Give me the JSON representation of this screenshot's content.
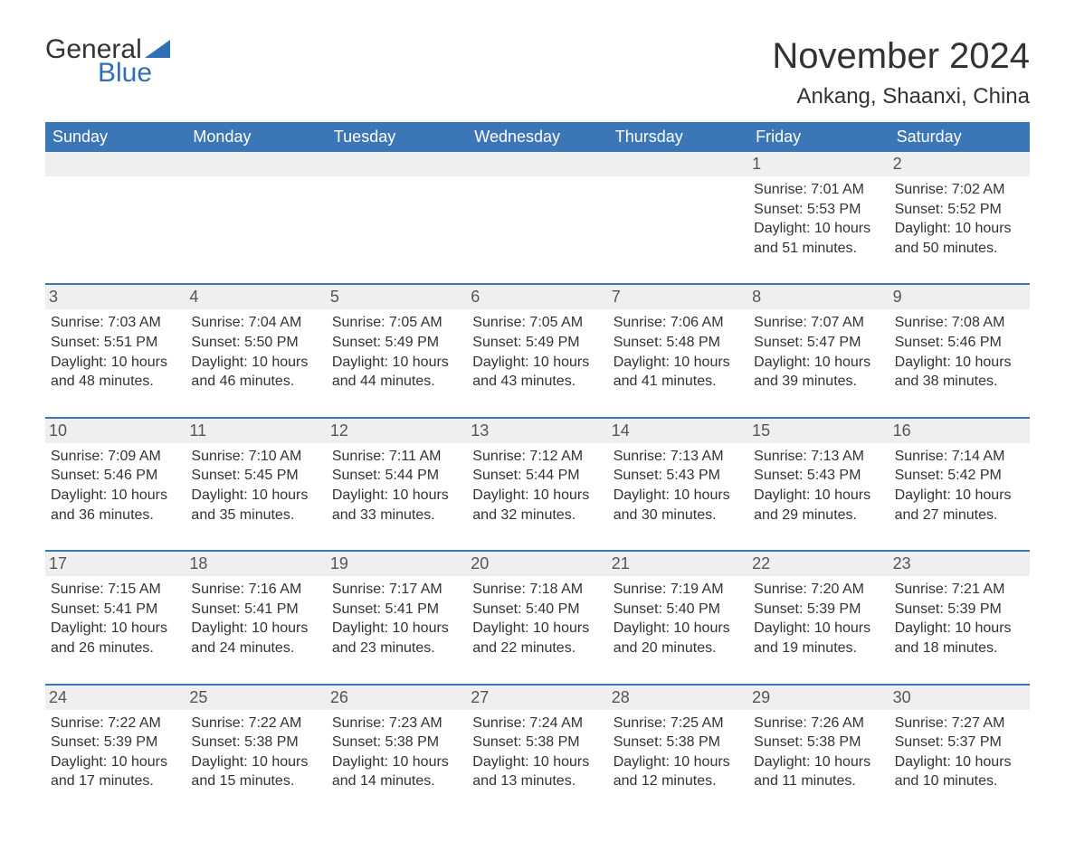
{
  "logo": {
    "general": "General",
    "blue": "Blue"
  },
  "header": {
    "month_title": "November 2024",
    "location": "Ankang, Shaanxi, China"
  },
  "style": {
    "header_bg": "#3b77b7",
    "header_text": "#ffffff",
    "divider_color": "#3b77b7",
    "daynum_bg": "#efefef",
    "body_text": "#333333",
    "logo_blue": "#2f6fb3",
    "title_fontsize": 40,
    "location_fontsize": 24,
    "weekday_fontsize": 18,
    "daynum_fontsize": 18,
    "body_fontsize": 16
  },
  "weekdays": [
    "Sunday",
    "Monday",
    "Tuesday",
    "Wednesday",
    "Thursday",
    "Friday",
    "Saturday"
  ],
  "labels": {
    "sunrise": "Sunrise:",
    "sunset": "Sunset:",
    "daylight": "Daylight:"
  },
  "weeks": [
    [
      null,
      null,
      null,
      null,
      null,
      {
        "n": "1",
        "sunrise": "7:01 AM",
        "sunset": "5:53 PM",
        "daylight": "10 hours and 51 minutes."
      },
      {
        "n": "2",
        "sunrise": "7:02 AM",
        "sunset": "5:52 PM",
        "daylight": "10 hours and 50 minutes."
      }
    ],
    [
      {
        "n": "3",
        "sunrise": "7:03 AM",
        "sunset": "5:51 PM",
        "daylight": "10 hours and 48 minutes."
      },
      {
        "n": "4",
        "sunrise": "7:04 AM",
        "sunset": "5:50 PM",
        "daylight": "10 hours and 46 minutes."
      },
      {
        "n": "5",
        "sunrise": "7:05 AM",
        "sunset": "5:49 PM",
        "daylight": "10 hours and 44 minutes."
      },
      {
        "n": "6",
        "sunrise": "7:05 AM",
        "sunset": "5:49 PM",
        "daylight": "10 hours and 43 minutes."
      },
      {
        "n": "7",
        "sunrise": "7:06 AM",
        "sunset": "5:48 PM",
        "daylight": "10 hours and 41 minutes."
      },
      {
        "n": "8",
        "sunrise": "7:07 AM",
        "sunset": "5:47 PM",
        "daylight": "10 hours and 39 minutes."
      },
      {
        "n": "9",
        "sunrise": "7:08 AM",
        "sunset": "5:46 PM",
        "daylight": "10 hours and 38 minutes."
      }
    ],
    [
      {
        "n": "10",
        "sunrise": "7:09 AM",
        "sunset": "5:46 PM",
        "daylight": "10 hours and 36 minutes."
      },
      {
        "n": "11",
        "sunrise": "7:10 AM",
        "sunset": "5:45 PM",
        "daylight": "10 hours and 35 minutes."
      },
      {
        "n": "12",
        "sunrise": "7:11 AM",
        "sunset": "5:44 PM",
        "daylight": "10 hours and 33 minutes."
      },
      {
        "n": "13",
        "sunrise": "7:12 AM",
        "sunset": "5:44 PM",
        "daylight": "10 hours and 32 minutes."
      },
      {
        "n": "14",
        "sunrise": "7:13 AM",
        "sunset": "5:43 PM",
        "daylight": "10 hours and 30 minutes."
      },
      {
        "n": "15",
        "sunrise": "7:13 AM",
        "sunset": "5:43 PM",
        "daylight": "10 hours and 29 minutes."
      },
      {
        "n": "16",
        "sunrise": "7:14 AM",
        "sunset": "5:42 PM",
        "daylight": "10 hours and 27 minutes."
      }
    ],
    [
      {
        "n": "17",
        "sunrise": "7:15 AM",
        "sunset": "5:41 PM",
        "daylight": "10 hours and 26 minutes."
      },
      {
        "n": "18",
        "sunrise": "7:16 AM",
        "sunset": "5:41 PM",
        "daylight": "10 hours and 24 minutes."
      },
      {
        "n": "19",
        "sunrise": "7:17 AM",
        "sunset": "5:41 PM",
        "daylight": "10 hours and 23 minutes."
      },
      {
        "n": "20",
        "sunrise": "7:18 AM",
        "sunset": "5:40 PM",
        "daylight": "10 hours and 22 minutes."
      },
      {
        "n": "21",
        "sunrise": "7:19 AM",
        "sunset": "5:40 PM",
        "daylight": "10 hours and 20 minutes."
      },
      {
        "n": "22",
        "sunrise": "7:20 AM",
        "sunset": "5:39 PM",
        "daylight": "10 hours and 19 minutes."
      },
      {
        "n": "23",
        "sunrise": "7:21 AM",
        "sunset": "5:39 PM",
        "daylight": "10 hours and 18 minutes."
      }
    ],
    [
      {
        "n": "24",
        "sunrise": "7:22 AM",
        "sunset": "5:39 PM",
        "daylight": "10 hours and 17 minutes."
      },
      {
        "n": "25",
        "sunrise": "7:22 AM",
        "sunset": "5:38 PM",
        "daylight": "10 hours and 15 minutes."
      },
      {
        "n": "26",
        "sunrise": "7:23 AM",
        "sunset": "5:38 PM",
        "daylight": "10 hours and 14 minutes."
      },
      {
        "n": "27",
        "sunrise": "7:24 AM",
        "sunset": "5:38 PM",
        "daylight": "10 hours and 13 minutes."
      },
      {
        "n": "28",
        "sunrise": "7:25 AM",
        "sunset": "5:38 PM",
        "daylight": "10 hours and 12 minutes."
      },
      {
        "n": "29",
        "sunrise": "7:26 AM",
        "sunset": "5:38 PM",
        "daylight": "10 hours and 11 minutes."
      },
      {
        "n": "30",
        "sunrise": "7:27 AM",
        "sunset": "5:37 PM",
        "daylight": "10 hours and 10 minutes."
      }
    ]
  ]
}
